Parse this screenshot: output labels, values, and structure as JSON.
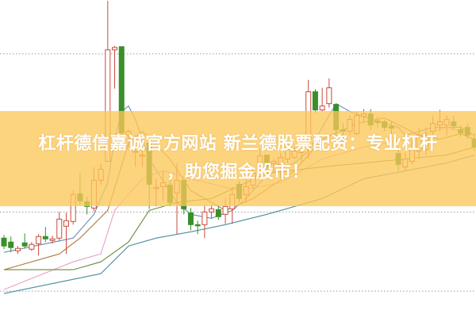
{
  "banner": {
    "title_line1": "杠杆德信嘉诚官方网站 新兰德股票配资：专业杠杆",
    "title_line2": "，助您掘金股市！"
  },
  "colors": {
    "up": "#c94a3a",
    "down": "#3a8f2a",
    "banner": "#fdc85a",
    "grid": "#9a9a9a"
  },
  "chart_data": {
    "type": "candlestick",
    "title": "",
    "xlabel": "",
    "ylabel": "",
    "ylim": [
      0,
      100.25
    ],
    "grid": "horizontal-dotted",
    "gridlines": [
      83.25,
      33.25,
      8.25
    ],
    "candles": [
      [
        25,
        22.5,
        26,
        21.5
      ],
      [
        23.75,
        22,
        25.5,
        20.5
      ],
      [
        21,
        21.75,
        22.5,
        20
      ],
      [
        23.5,
        22.5,
        26.5,
        21.75
      ],
      [
        21.5,
        23,
        23.75,
        21
      ],
      [
        23.25,
        25.5,
        26.25,
        19.5
      ],
      [
        25.5,
        24.75,
        28.5,
        23.75
      ],
      [
        24.25,
        24.75,
        25.75,
        23.25
      ],
      [
        25,
        31,
        33.25,
        24.25
      ],
      [
        28.75,
        30.5,
        33,
        20
      ],
      [
        30.25,
        38.75,
        40,
        29.25
      ],
      [
        39,
        36.75,
        45.5,
        35.5
      ],
      [
        36.5,
        35,
        38,
        32.5
      ],
      [
        34.5,
        43.25,
        47.5,
        33.5
      ],
      [
        43.25,
        46.75,
        48.5,
        42
      ],
      [
        49.25,
        84.5,
        100,
        49.25
      ],
      [
        84.5,
        85.25,
        85.75,
        72.25
      ],
      [
        85.5,
        58.25,
        85.5,
        57.5
      ],
      [
        57.5,
        58.75,
        59.25,
        53.75
      ],
      [
        52.5,
        52.5,
        57.5,
        47.5
      ],
      [
        51.25,
        51.25,
        56.25,
        47.5
      ],
      [
        55,
        42,
        55,
        34.25
      ],
      [
        41,
        41,
        43.75,
        35
      ],
      [
        41.25,
        42.5,
        46.25,
        36.75
      ],
      [
        41.75,
        36.25,
        43.75,
        35
      ],
      [
        39.25,
        43.25,
        48.75,
        26.25
      ],
      [
        43.25,
        34.25,
        43.75,
        32.5
      ],
      [
        33,
        29.25,
        34.5,
        27.5
      ],
      [
        29.25,
        29,
        30.5,
        26.25
      ],
      [
        29.25,
        33.25,
        35.5,
        25
      ],
      [
        33.25,
        34.25,
        35.5,
        31.25
      ],
      [
        34,
        31.75,
        35.5,
        30.75
      ],
      [
        32.5,
        35,
        37.5,
        29.5
      ],
      [
        34.25,
        38.75,
        41.25,
        29.5
      ],
      [
        42,
        37.5,
        43,
        36.25
      ],
      [
        38.75,
        41.25,
        43.75,
        36.25
      ],
      [
        41.75,
        45.5,
        47,
        40.5
      ],
      [
        47,
        51,
        53,
        45.5
      ],
      [
        51.25,
        47.5,
        51.25,
        45
      ],
      [
        48.5,
        49.25,
        50,
        46.25
      ],
      [
        48.25,
        50.5,
        52,
        43.75
      ],
      [
        50,
        53,
        55,
        48.75
      ],
      [
        50.5,
        52.5,
        53.75,
        50
      ],
      [
        52,
        55,
        55.5,
        48.75
      ],
      [
        56.25,
        71.25,
        75,
        50
      ],
      [
        71.25,
        65.5,
        72,
        64.5
      ],
      [
        65.5,
        66.75,
        72.5,
        65
      ],
      [
        67.5,
        72.5,
        75.5,
        66.25
      ],
      [
        67.25,
        59.25,
        67.5,
        56.25
      ],
      [
        59.25,
        58.75,
        61.25,
        55
      ],
      [
        58.75,
        62.5,
        63.75,
        57.5
      ],
      [
        58,
        63.75,
        65,
        57.5
      ],
      [
        63.5,
        64.25,
        65.75,
        61.25
      ],
      [
        64.25,
        60.75,
        65.75,
        59.25
      ],
      [
        62,
        61.5,
        63.25,
        60
      ],
      [
        61.75,
        60,
        62.5,
        58.75
      ],
      [
        60.25,
        59.75,
        61.75,
        57
      ],
      [
        51.75,
        48.25,
        53.75,
        46.25
      ],
      [
        47.5,
        50,
        52,
        46.25
      ],
      [
        49.25,
        53,
        56.25,
        48.25
      ],
      [
        52.5,
        57.5,
        60,
        50
      ],
      [
        53,
        57.5,
        60,
        51.25
      ],
      [
        58.75,
        61.25,
        63.75,
        57.5
      ],
      [
        60.75,
        61.75,
        65.5,
        58.75
      ],
      [
        60.75,
        62.5,
        63.75,
        57.5
      ],
      [
        61.75,
        60.5,
        63.75,
        59.25
      ],
      [
        59.25,
        58.25,
        60.5,
        57
      ],
      [
        60,
        57.5,
        61.25,
        56.25
      ],
      [
        56.25,
        53.75,
        58,
        52.5
      ]
    ],
    "candle_fields": [
      "open",
      "close",
      "high",
      "low"
    ],
    "moving_averages": [
      {
        "color": "#6a8fb5",
        "points": [
          [
            0,
            20.5
          ],
          [
            10,
            25
          ],
          [
            13,
            32.5
          ],
          [
            15,
            42.5
          ],
          [
            16,
            56.25
          ],
          [
            17,
            65
          ],
          [
            18,
            66.75
          ],
          [
            19,
            62.5
          ],
          [
            21,
            50
          ],
          [
            25,
            36.25
          ],
          [
            27,
            32.5
          ],
          [
            30,
            31.25
          ],
          [
            33,
            33.75
          ],
          [
            35,
            37.5
          ],
          [
            38,
            45
          ],
          [
            42,
            48.75
          ],
          [
            44,
            52.5
          ],
          [
            48,
            67.5
          ],
          [
            50,
            65
          ],
          [
            53,
            62.5
          ],
          [
            57,
            60
          ],
          [
            58,
            57.5
          ],
          [
            62,
            60
          ],
          [
            66,
            60
          ],
          [
            68,
            57.5
          ]
        ]
      },
      {
        "color": "#b07a3a",
        "points": [
          [
            0,
            15
          ],
          [
            8,
            20
          ],
          [
            11,
            25
          ],
          [
            15,
            33.75
          ],
          [
            18,
            55
          ],
          [
            20,
            58.75
          ],
          [
            24,
            50
          ],
          [
            27,
            40
          ],
          [
            32,
            33.75
          ],
          [
            36,
            37.5
          ],
          [
            42,
            46.25
          ],
          [
            46,
            56.25
          ],
          [
            51,
            61.25
          ],
          [
            55,
            63
          ],
          [
            60,
            57.5
          ],
          [
            63,
            56.25
          ],
          [
            66,
            58
          ],
          [
            68,
            56.25
          ]
        ]
      },
      {
        "color": "#e8a0c8",
        "points": [
          [
            0,
            8.75
          ],
          [
            10,
            17.5
          ],
          [
            14,
            20
          ],
          [
            16,
            33.75
          ],
          [
            20,
            43.75
          ],
          [
            23,
            46.25
          ],
          [
            27,
            43.75
          ],
          [
            34,
            40
          ],
          [
            40,
            42.5
          ],
          [
            46,
            50
          ],
          [
            52,
            53.75
          ],
          [
            58,
            56.25
          ],
          [
            64,
            60
          ],
          [
            68,
            57.5
          ]
        ]
      },
      {
        "color": "#6b8a3a",
        "points": [
          [
            0,
            15
          ],
          [
            10,
            15
          ],
          [
            14,
            17.5
          ],
          [
            18,
            23.75
          ],
          [
            21,
            33.75
          ],
          [
            25,
            36.25
          ],
          [
            30,
            37.5
          ],
          [
            38,
            45.5
          ],
          [
            46,
            47.5
          ],
          [
            52,
            48.75
          ],
          [
            58,
            50
          ],
          [
            64,
            51.25
          ],
          [
            68,
            53.75
          ]
        ]
      },
      {
        "color": "#4a8fa0",
        "points": [
          [
            0,
            7.5
          ],
          [
            14,
            13.75
          ],
          [
            18,
            22.5
          ],
          [
            22,
            25
          ],
          [
            27,
            27
          ],
          [
            32,
            29.25
          ],
          [
            38,
            32.5
          ],
          [
            46,
            37.5
          ],
          [
            52,
            43.75
          ],
          [
            58,
            46.25
          ],
          [
            64,
            48.75
          ],
          [
            68,
            51.25
          ]
        ]
      }
    ]
  }
}
